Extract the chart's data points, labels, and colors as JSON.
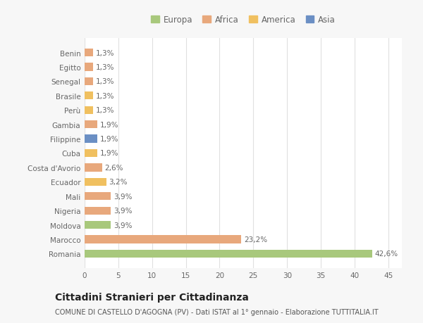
{
  "categories": [
    "Benin",
    "Egitto",
    "Senegal",
    "Brasile",
    "Perù",
    "Gambia",
    "Filippine",
    "Cuba",
    "Costa d'Avorio",
    "Ecuador",
    "Mali",
    "Nigeria",
    "Moldova",
    "Marocco",
    "Romania"
  ],
  "values": [
    1.3,
    1.3,
    1.3,
    1.3,
    1.3,
    1.9,
    1.9,
    1.9,
    2.6,
    3.2,
    3.9,
    3.9,
    3.9,
    23.2,
    42.6
  ],
  "labels": [
    "1,3%",
    "1,3%",
    "1,3%",
    "1,3%",
    "1,3%",
    "1,9%",
    "1,9%",
    "1,9%",
    "2,6%",
    "3,2%",
    "3,9%",
    "3,9%",
    "3,9%",
    "23,2%",
    "42,6%"
  ],
  "colors": [
    "#e8a87c",
    "#e8a87c",
    "#e8a87c",
    "#f0c060",
    "#f0c060",
    "#e8a87c",
    "#6b8fc4",
    "#f0c060",
    "#e8a87c",
    "#f0c060",
    "#e8a87c",
    "#e8a87c",
    "#a8c87c",
    "#e8a87c",
    "#a8c87c"
  ],
  "legend_labels": [
    "Europa",
    "Africa",
    "America",
    "Asia"
  ],
  "legend_colors": [
    "#a8c87c",
    "#e8a87c",
    "#f0c060",
    "#6b8fc4"
  ],
  "title": "Cittadini Stranieri per Cittadinanza",
  "subtitle": "COMUNE DI CASTELLO D'AGOGNA (PV) - Dati ISTAT al 1° gennaio - Elaborazione TUTTITALIA.IT",
  "xlim": [
    0,
    47
  ],
  "xticks": [
    0,
    5,
    10,
    15,
    20,
    25,
    30,
    35,
    40,
    45
  ],
  "bg_color": "#f7f7f7",
  "bar_bg_color": "#ffffff",
  "grid_color": "#e0e0e0",
  "text_color": "#666666",
  "label_fontsize": 7.5,
  "tick_fontsize": 7.5,
  "title_fontsize": 10,
  "subtitle_fontsize": 7
}
